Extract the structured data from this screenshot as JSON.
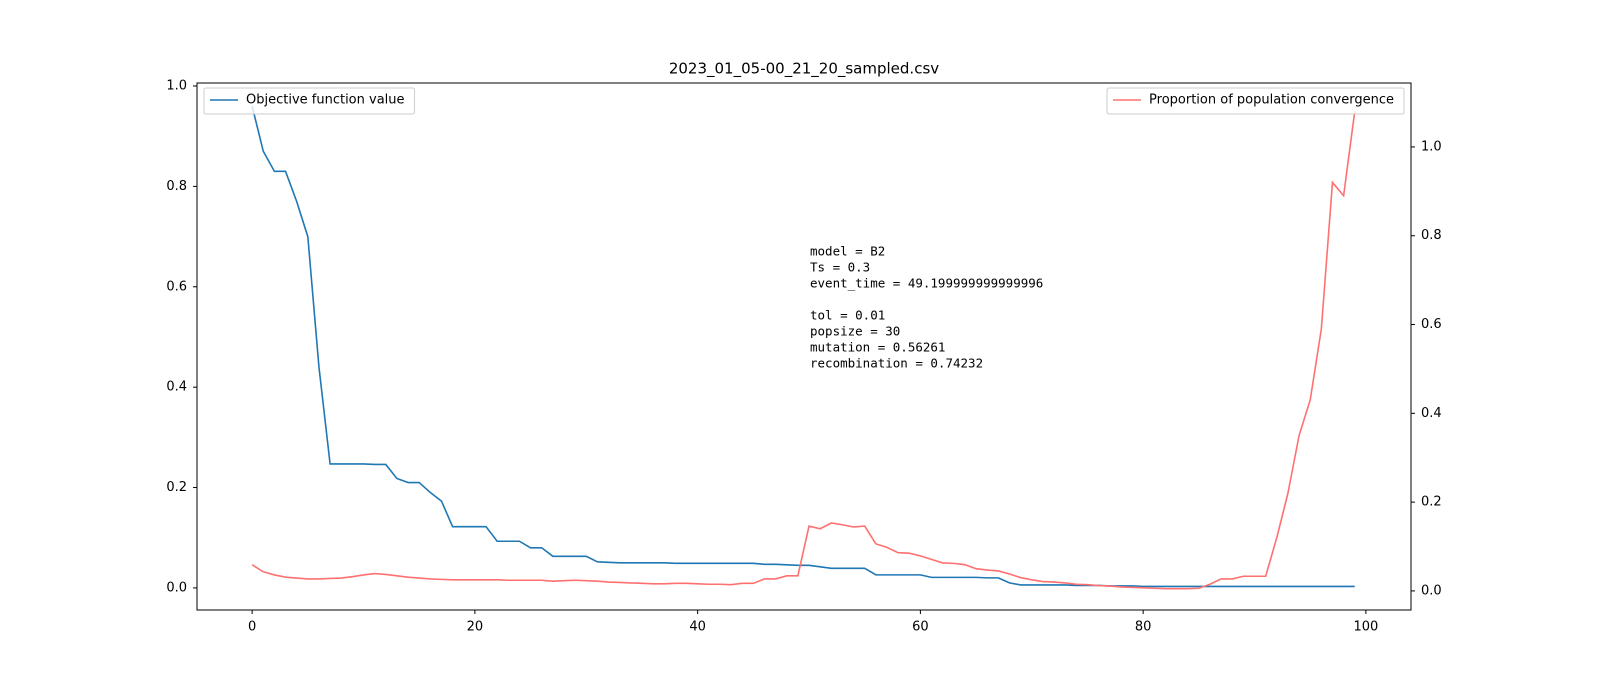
{
  "chart_data": {
    "type": "line",
    "title": "2023_01_05-00_21_20_sampled.csv",
    "x": [
      0,
      1,
      2,
      3,
      4,
      5,
      6,
      7,
      8,
      9,
      10,
      11,
      12,
      13,
      14,
      15,
      16,
      17,
      18,
      19,
      20,
      21,
      22,
      23,
      24,
      25,
      26,
      27,
      28,
      29,
      30,
      31,
      32,
      33,
      34,
      35,
      36,
      37,
      38,
      39,
      40,
      41,
      42,
      43,
      44,
      45,
      46,
      47,
      48,
      49,
      50,
      51,
      52,
      53,
      54,
      55,
      56,
      57,
      58,
      59,
      60,
      61,
      62,
      63,
      64,
      65,
      66,
      67,
      68,
      69,
      70,
      71,
      72,
      73,
      74,
      75,
      76,
      77,
      78,
      79,
      80,
      81,
      82,
      83,
      84,
      85,
      86,
      87,
      88,
      89,
      90,
      91,
      92,
      93,
      94,
      95,
      96,
      97,
      98,
      99
    ],
    "series": [
      {
        "name": "Objective function value",
        "color": "#1f77b4",
        "legend_loc": "upper left",
        "values": [
          0.96,
          0.87,
          0.83,
          0.83,
          0.77,
          0.7,
          0.44,
          0.247,
          0.247,
          0.247,
          0.247,
          0.246,
          0.246,
          0.218,
          0.21,
          0.21,
          0.19,
          0.173,
          0.122,
          0.122,
          0.122,
          0.122,
          0.093,
          0.093,
          0.093,
          0.08,
          0.08,
          0.063,
          0.063,
          0.063,
          0.063,
          0.052,
          0.051,
          0.05,
          0.05,
          0.05,
          0.05,
          0.05,
          0.049,
          0.049,
          0.049,
          0.049,
          0.049,
          0.049,
          0.049,
          0.049,
          0.047,
          0.047,
          0.046,
          0.045,
          0.045,
          0.042,
          0.039,
          0.039,
          0.039,
          0.039,
          0.026,
          0.026,
          0.026,
          0.026,
          0.026,
          0.021,
          0.021,
          0.021,
          0.021,
          0.021,
          0.02,
          0.02,
          0.01,
          0.006,
          0.006,
          0.006,
          0.006,
          0.006,
          0.005,
          0.005,
          0.005,
          0.004,
          0.004,
          0.004,
          0.003,
          0.003,
          0.003,
          0.003,
          0.003,
          0.003,
          0.003,
          0.003,
          0.003,
          0.003,
          0.003,
          0.003,
          0.003,
          0.003,
          0.003,
          0.003,
          0.003,
          0.003,
          0.003,
          0.003
        ]
      },
      {
        "name": "Proportion of population convergence",
        "color": "#ff7070",
        "axis": "y2",
        "legend_loc": "upper right",
        "values": [
          0.059,
          0.043,
          0.036,
          0.031,
          0.029,
          0.027,
          0.027,
          0.028,
          0.029,
          0.032,
          0.036,
          0.039,
          0.037,
          0.034,
          0.031,
          0.029,
          0.027,
          0.026,
          0.025,
          0.025,
          0.025,
          0.025,
          0.025,
          0.024,
          0.024,
          0.024,
          0.024,
          0.022,
          0.023,
          0.024,
          0.023,
          0.022,
          0.02,
          0.019,
          0.018,
          0.017,
          0.016,
          0.016,
          0.017,
          0.017,
          0.016,
          0.015,
          0.015,
          0.014,
          0.017,
          0.017,
          0.027,
          0.027,
          0.034,
          0.034,
          0.146,
          0.14,
          0.153,
          0.149,
          0.144,
          0.146,
          0.106,
          0.098,
          0.086,
          0.085,
          0.079,
          0.071,
          0.063,
          0.062,
          0.059,
          0.05,
          0.047,
          0.045,
          0.038,
          0.03,
          0.025,
          0.021,
          0.02,
          0.018,
          0.015,
          0.014,
          0.012,
          0.011,
          0.009,
          0.008,
          0.007,
          0.006,
          0.005,
          0.005,
          0.005,
          0.006,
          0.015,
          0.027,
          0.027,
          0.033,
          0.033,
          0.033,
          0.12,
          0.22,
          0.35,
          0.43,
          0.59,
          0.92,
          0.89,
          1.08
        ]
      }
    ],
    "xlim": [
      -4.95,
      104.05
    ],
    "xticks": [
      0,
      20,
      40,
      60,
      80,
      100
    ],
    "ylim": [
      -0.044,
      1.006
    ],
    "yticks": [
      {
        "value": 0,
        "label": "0.0"
      },
      0.2,
      0.4,
      0.6,
      0.8,
      {
        "value": 1,
        "label": "1.0"
      }
    ],
    "y2lim": [
      -0.043,
      1.144
    ],
    "y2ticks": [
      {
        "value": 0,
        "label": "0.0"
      },
      0.2,
      0.4,
      0.6,
      0.8,
      {
        "value": 1,
        "label": "1.0"
      }
    ],
    "annotations": [
      [
        "model = B2",
        "Ts = 0.3",
        "event_time = 49.199999999999996"
      ],
      [
        "tol = 0.01",
        "popsize = 30",
        "mutation = 0.56261",
        "recombination = 0.74232"
      ]
    ]
  }
}
